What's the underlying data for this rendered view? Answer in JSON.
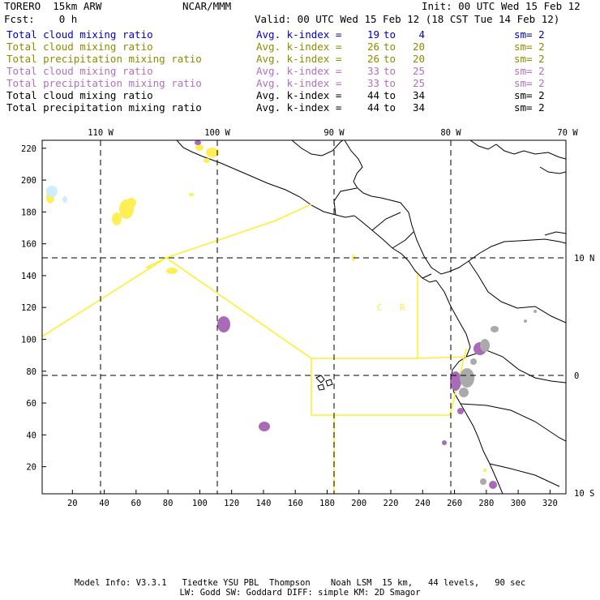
{
  "header": {
    "model": "TORERO  15km ARW",
    "org": "NCAR/MMM",
    "init": "Init: 00 UTC Wed 15 Feb 12",
    "fcst": "Fcst:    0 h",
    "valid": "Valid: 00 UTC Wed 15 Feb 12 (18 CST Tue 14 Feb 12)"
  },
  "legend": [
    {
      "name": "Total cloud mixing ratio",
      "avg": "Avg. k-index =",
      "lo": "19",
      "to": "to",
      "hi": "4",
      "sm": "sm= 2",
      "color": "#0000cc"
    },
    {
      "name": "Total cloud mixing ratio",
      "avg": "Avg. k-index =",
      "lo": "26",
      "to": "to",
      "hi": "20",
      "sm": "sm= 2",
      "color": "#8c8c00"
    },
    {
      "name": "Total precipitation mixing ratio",
      "avg": "Avg. k-index =",
      "lo": "26",
      "to": "to",
      "hi": "20",
      "sm": "sm= 2",
      "color": "#8c8c00"
    },
    {
      "name": "Total cloud mixing ratio",
      "avg": "Avg. k-index =",
      "lo": "33",
      "to": "to",
      "hi": "25",
      "sm": "sm= 2",
      "color": "#b070c0"
    },
    {
      "name": "Total precipitation mixing ratio",
      "avg": "Avg. k-index =",
      "lo": "33",
      "to": "to",
      "hi": "25",
      "sm": "sm= 2",
      "color": "#b070c0"
    },
    {
      "name": "Total cloud mixing ratio",
      "avg": "Avg. k-index =",
      "lo": "44",
      "to": "to",
      "hi": "34",
      "sm": "sm= 2",
      "color": "#000000"
    },
    {
      "name": "Total precipitation mixing ratio",
      "avg": "Avg. k-index =",
      "lo": "44",
      "to": "to",
      "hi": "34",
      "sm": "sm= 2",
      "color": "#000000"
    }
  ],
  "map": {
    "top_lon_labels": [
      "110 W",
      "100 W",
      "90 W",
      "80 W",
      "70 W"
    ],
    "right_lat_labels": [
      "10 N",
      "0",
      "10 S"
    ],
    "left_ticks": [
      "220",
      "200",
      "180",
      "160",
      "140",
      "120",
      "100",
      "80",
      "60",
      "40",
      "20"
    ],
    "bottom_ticks": [
      "20",
      "40",
      "60",
      "80",
      "100",
      "120",
      "140",
      "160",
      "180",
      "200",
      "220",
      "240",
      "260",
      "280",
      "300",
      "320"
    ],
    "box_label_c": "C",
    "box_label_r": "R",
    "colors": {
      "boundary": "#ffee33",
      "cloud_light": "#ffee55",
      "cloud_purple": "#a96ab8",
      "cloud_gray": "#aaaaaa",
      "cloud_cyan": "#cceeff"
    }
  },
  "footer": {
    "line1": "Model Info: V3.3.1   Tiedtke YSU PBL  Thompson    Noah LSM  15 km,   44 levels,   90 sec",
    "line2": "LW: Godd SW: Goddard DIFF: simple KM: 2D Smagor"
  }
}
